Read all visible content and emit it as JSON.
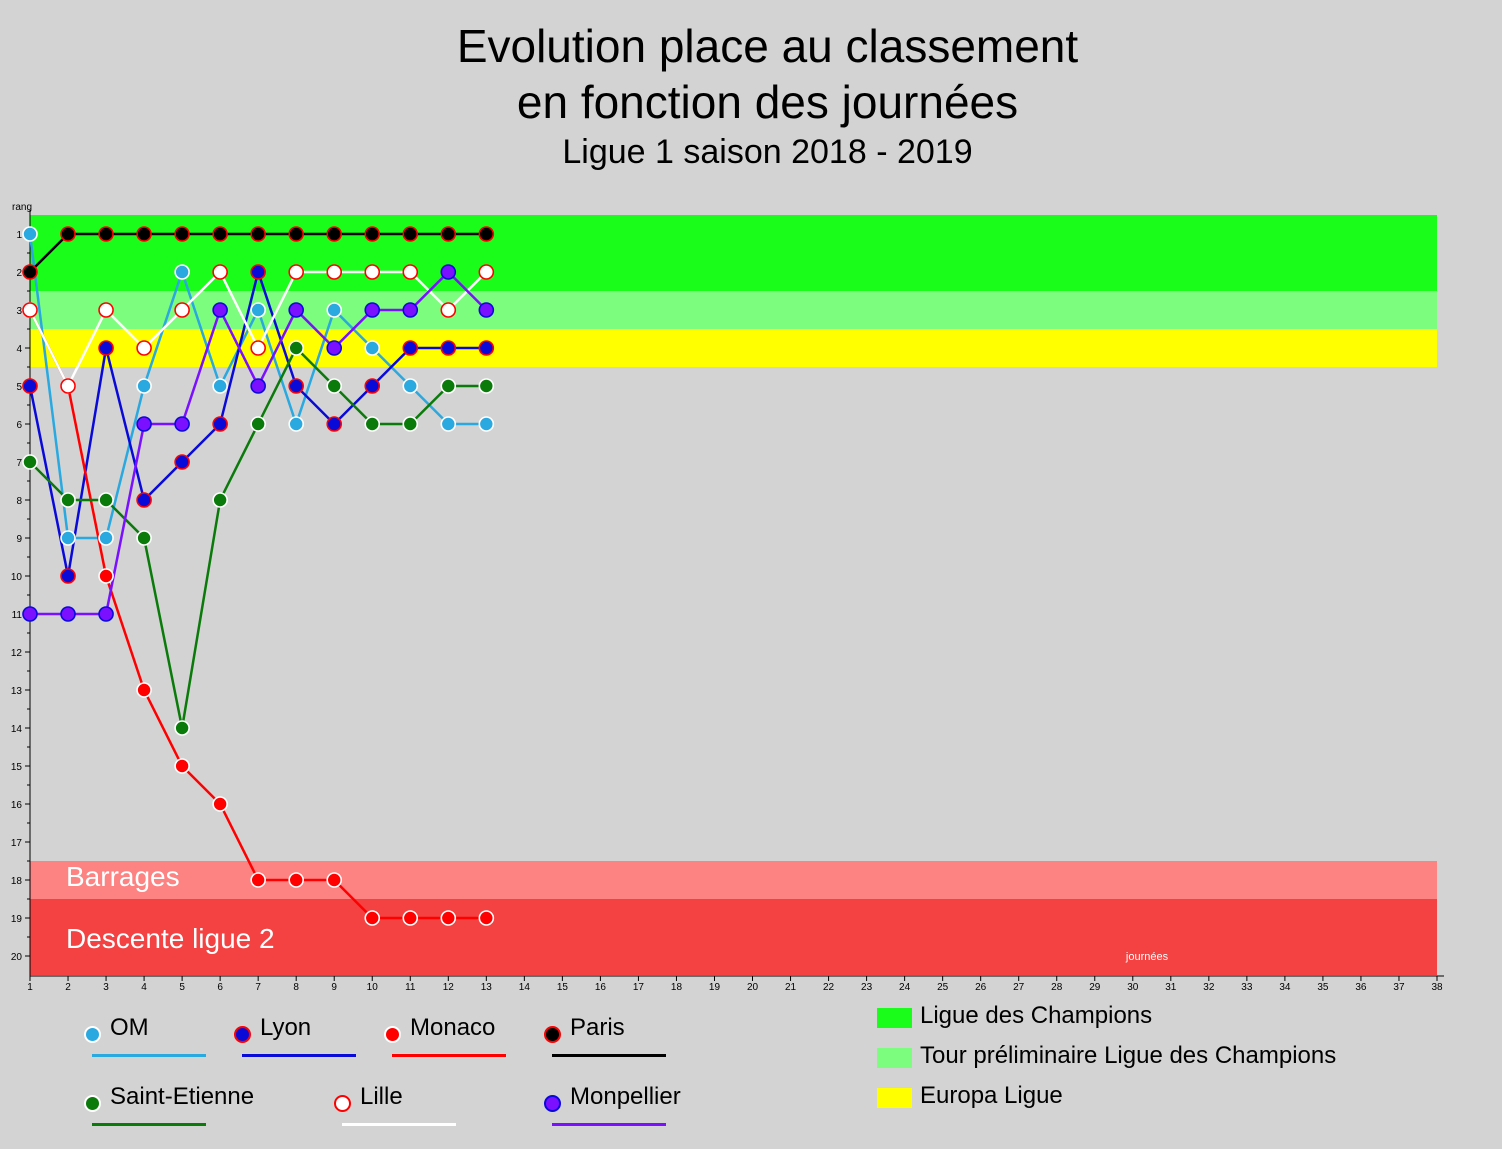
{
  "title": {
    "line1": "Evolution place au classement",
    "line2": "en fonction des journées",
    "subtitle": "Ligue 1 saison 2018 - 2019"
  },
  "chart_data": {
    "type": "line",
    "ylabel": "rang",
    "xlabel": "journées",
    "xlim": [
      1,
      38
    ],
    "ylim": [
      1,
      20
    ],
    "y_inverted": true,
    "x_ticks": [
      1,
      2,
      3,
      4,
      5,
      6,
      7,
      8,
      9,
      10,
      11,
      12,
      13,
      14,
      15,
      16,
      17,
      18,
      19,
      20,
      21,
      22,
      23,
      24,
      25,
      26,
      27,
      28,
      29,
      30,
      31,
      32,
      33,
      34,
      35,
      36,
      37,
      38
    ],
    "y_ticks": [
      1,
      2,
      3,
      4,
      5,
      6,
      7,
      8,
      9,
      10,
      11,
      12,
      13,
      14,
      15,
      16,
      17,
      18,
      19,
      20
    ],
    "zones": [
      {
        "name": "Ligue des Champions",
        "from": 0.5,
        "to": 2.5,
        "color": "#1afd1a"
      },
      {
        "name": "Tour préliminaire Ligue des Champions",
        "from": 2.5,
        "to": 3.5,
        "color": "#7dfd7d"
      },
      {
        "name": "Europa Ligue",
        "from": 3.5,
        "to": 4.5,
        "color": "#ffff00"
      },
      {
        "name": "Barrages",
        "from": 17.5,
        "to": 18.5,
        "color": "#fd8282"
      },
      {
        "name": "Descente ligue 2",
        "from": 18.5,
        "to": 20.5,
        "color": "#f44141"
      }
    ],
    "series": [
      {
        "name": "OM",
        "line": "#2aa8e0",
        "fill": "#2aa8e0",
        "stroke": "#ffffff",
        "values": [
          1,
          9,
          9,
          5,
          2,
          5,
          3,
          6,
          3,
          4,
          5,
          6,
          6
        ]
      },
      {
        "name": "Lyon",
        "line": "#0a0ad8",
        "fill": "#0a0ad8",
        "stroke": "#ff0000",
        "values": [
          5,
          10,
          4,
          8,
          7,
          6,
          2,
          5,
          6,
          5,
          4,
          4,
          4
        ]
      },
      {
        "name": "Monaco",
        "line": "#ff0000",
        "fill": "#ff0000",
        "stroke": "#ffffff",
        "values": [
          3,
          5,
          10,
          13,
          15,
          16,
          18,
          18,
          18,
          19,
          19,
          19,
          19
        ]
      },
      {
        "name": "Paris",
        "line": "#000000",
        "fill": "#000000",
        "stroke": "#ff0000",
        "values": [
          2,
          1,
          1,
          1,
          1,
          1,
          1,
          1,
          1,
          1,
          1,
          1,
          1
        ]
      },
      {
        "name": "Saint-Etienne",
        "line": "#0a7a0a",
        "fill": "#0a7a0a",
        "stroke": "#ffffff",
        "values": [
          7,
          8,
          8,
          9,
          14,
          8,
          6,
          4,
          5,
          6,
          6,
          5,
          5
        ]
      },
      {
        "name": "Lille",
        "line": "#ffffff",
        "fill": "#ffffff",
        "stroke": "#ff0000",
        "values": [
          3,
          5,
          3,
          4,
          3,
          2,
          4,
          2,
          2,
          2,
          2,
          3,
          2
        ]
      },
      {
        "name": "Monpellier",
        "line": "#7a10ff",
        "fill": "#7a10ff",
        "stroke": "#0a0ad8",
        "values": [
          11,
          11,
          11,
          6,
          6,
          3,
          5,
          3,
          4,
          3,
          3,
          2,
          3
        ]
      }
    ]
  }
}
